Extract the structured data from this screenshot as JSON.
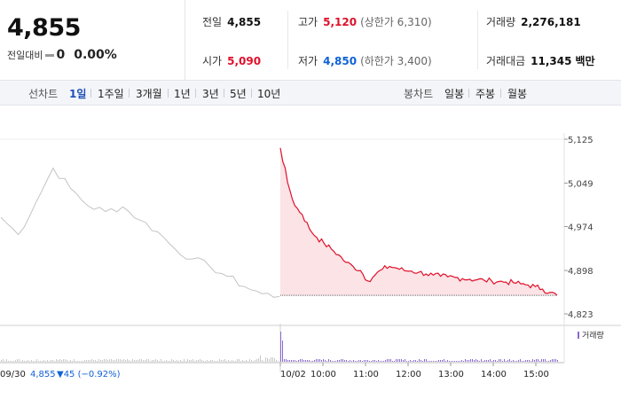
{
  "header": {
    "current_price": "4,855",
    "change_label": "전일대비",
    "change_value": "0",
    "change_pct": "0.00%",
    "prev_close_label": "전일",
    "prev_close": "4,855",
    "open_label": "시가",
    "open": "5,090",
    "high_label": "고가",
    "high": "5,120",
    "upper_limit": "(상한가 6,310)",
    "low_label": "저가",
    "low": "4,850",
    "lower_limit": "(하한가 3,400)",
    "volume_label": "거래량",
    "volume": "2,276,181",
    "amount_label": "거래대금",
    "amount": "11,345",
    "amount_unit": "백만"
  },
  "toolbar": {
    "line_label": "선차트",
    "line_tabs": [
      "1일",
      "1주일",
      "3개월",
      "1년",
      "3년",
      "5년",
      "10년"
    ],
    "active_tab": "1일",
    "candle_label": "봉차트",
    "candle_tabs": [
      "일봉",
      "주봉",
      "월봉"
    ]
  },
  "colors": {
    "up": "#e0102a",
    "down": "#1062d6",
    "prev_line": "#c4c4c4",
    "fill": "#fbe3e6",
    "volume_today": "#8a6bd1",
    "volume_prev": "#c8c8c8"
  },
  "chart_data": {
    "type": "line",
    "ylim": [
      4823,
      5125
    ],
    "y_ticks": [
      "5,125",
      "5,049",
      "4,974",
      "4,898",
      "4,823"
    ],
    "x_ticks": [
      "10/02",
      "10:00",
      "11:00",
      "12:00",
      "13:00",
      "14:00",
      "15:00"
    ],
    "prev_day_label": "09/30",
    "prev_day_close": "4,855",
    "prev_day_change": "▼45 (−0.92%)",
    "volume_legend": "거래량",
    "series": [
      {
        "values": [
          4990,
          4960,
          5015,
          5075,
          5040,
          5010,
          5000,
          5008,
          4985,
          4965,
          4935,
          4918,
          4905,
          4888,
          4870,
          4858,
          4853
        ]
      },
      {
        "values": [
          5110,
          5050,
          5010,
          4995,
          4970,
          4955,
          4945,
          4935,
          4925,
          4912,
          4905,
          4898,
          4880,
          4890,
          4900,
          4905,
          4902,
          4898,
          4897,
          4895,
          4892,
          4890,
          4888,
          4887,
          4886,
          4884,
          4883,
          4882,
          4881,
          4880,
          4879,
          4878,
          4877,
          4875,
          4873,
          4870,
          4866,
          4860,
          4855
        ]
      }
    ]
  }
}
